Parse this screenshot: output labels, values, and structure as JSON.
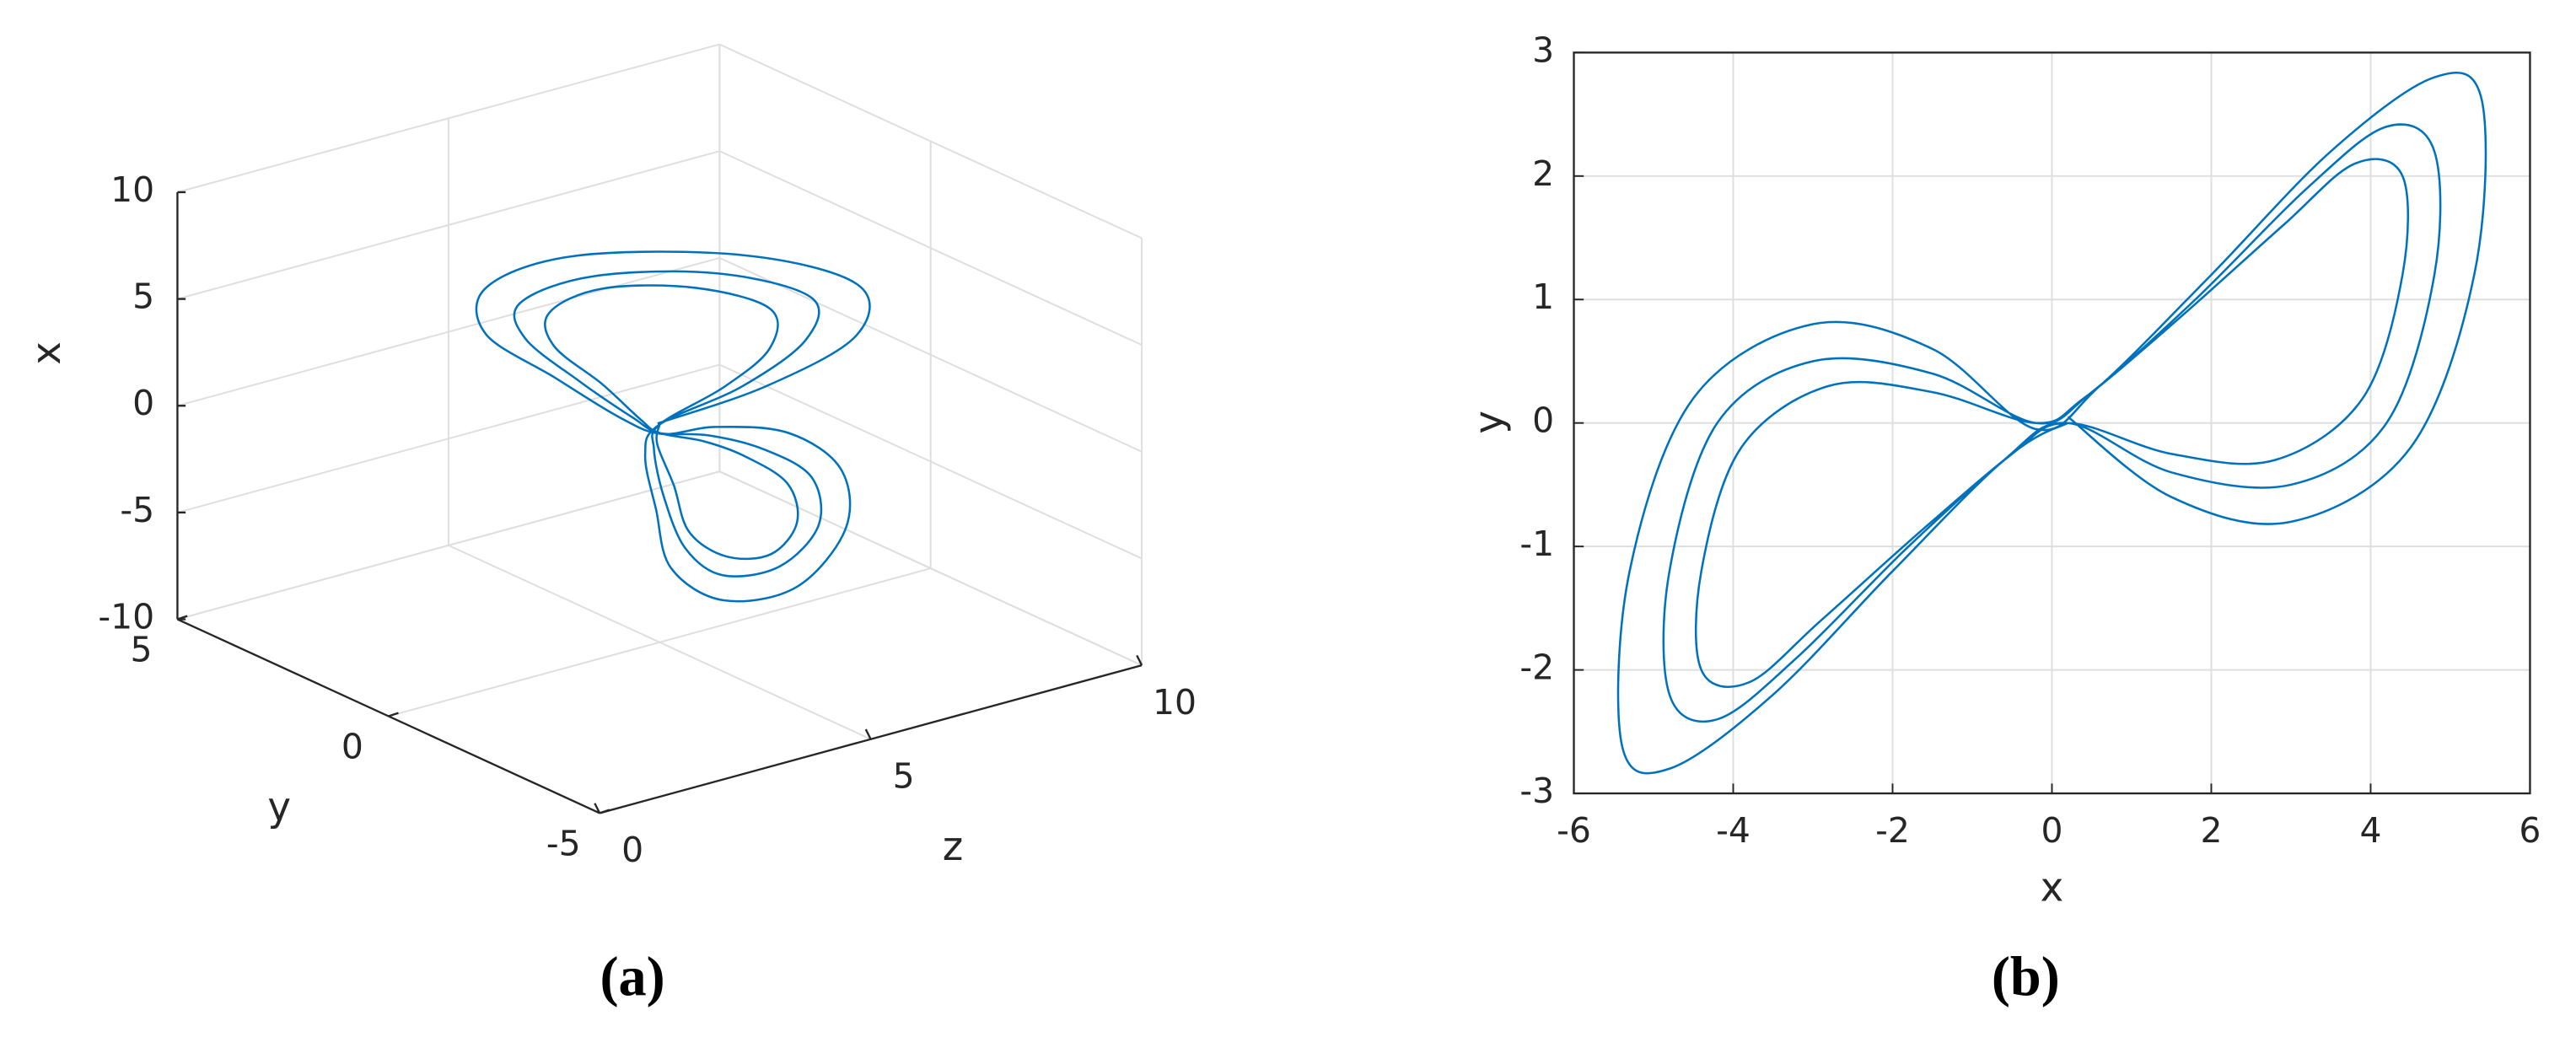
{
  "chart_data": [
    {
      "type": "line3d",
      "caption": "(a)",
      "xlabel": "x",
      "ylabel": "y",
      "zlabel": "z",
      "xlim": [
        -10,
        10
      ],
      "xticks": [
        -10,
        -5,
        0,
        5,
        10
      ],
      "ylim": [
        -5,
        5
      ],
      "yticks": [
        -5,
        0,
        5
      ],
      "zlim": [
        0,
        10
      ],
      "zticks": [
        0,
        5,
        10
      ],
      "grid": true,
      "series": [
        {
          "color": "#0072bd",
          "x": [
            0.2,
            1.5,
            3,
            4.5,
            5.3,
            5.4,
            4.8,
            3.5,
            2,
            0.6,
            -0.2,
            -1.5,
            -3,
            -4.5,
            -5.3,
            -5.4,
            -4.8,
            -3.5,
            -2,
            -0.6,
            0.2,
            1.5,
            3,
            4.2,
            4.8,
            4.8,
            4.2,
            3.2,
            1.8,
            0.5,
            -0.2,
            -1.5,
            -3,
            -4.2,
            -4.8,
            -4.8,
            -4.2,
            -3.2,
            -1.8,
            -0.5,
            0.2,
            1.5,
            2.8,
            3.9,
            4.4,
            4.4,
            3.8,
            2.9,
            1.6,
            0.4,
            -0.2,
            -1.5,
            -2.8,
            -3.9,
            -4.4,
            -4.4,
            -3.8,
            -2.9,
            -1.6,
            -0.4,
            0.2
          ],
          "y": [
            0.05,
            -0.6,
            -0.8,
            -0.2,
            1.2,
            2.6,
            2.8,
            2.2,
            1.2,
            0.3,
            -0.05,
            0.6,
            0.8,
            0.2,
            -1.2,
            -2.6,
            -2.8,
            -2.2,
            -1.2,
            -0.3,
            0,
            -0.4,
            -0.5,
            0,
            1.2,
            2.2,
            2.4,
            1.9,
            1,
            0.25,
            0,
            0.4,
            0.5,
            0,
            -1.2,
            -2.2,
            -2.4,
            -1.9,
            -1,
            -0.25,
            0,
            -0.25,
            -0.3,
            0.2,
            1.2,
            2,
            2.1,
            1.6,
            0.85,
            0.2,
            0,
            0.25,
            0.3,
            -0.2,
            -1.2,
            -2,
            -2.1,
            -1.6,
            -0.85,
            -0.2,
            0
          ],
          "z": [
            5,
            6.5,
            8,
            8.5,
            7.5,
            5.5,
            4,
            3.5,
            4,
            4.5,
            5,
            6.5,
            8,
            8.5,
            7.5,
            5.5,
            4,
            3.5,
            4,
            4.5,
            5,
            6.2,
            7.3,
            7.8,
            7,
            5.5,
            4.3,
            4,
            4.3,
            4.7,
            5,
            6.2,
            7.3,
            7.8,
            7,
            5.5,
            4.3,
            4,
            4.3,
            4.7,
            5,
            6,
            6.8,
            7.2,
            6.6,
            5.5,
            4.6,
            4.3,
            4.6,
            4.8,
            5,
            6,
            6.8,
            7.2,
            6.6,
            5.5,
            4.6,
            4.3,
            4.6,
            4.8,
            5
          ]
        }
      ]
    },
    {
      "type": "line",
      "caption": "(b)",
      "xlabel": "x",
      "ylabel": "y",
      "xlim": [
        -6,
        6
      ],
      "xticks": [
        -6,
        -4,
        -2,
        0,
        2,
        4,
        6
      ],
      "ylim": [
        -3,
        3
      ],
      "yticks": [
        -3,
        -2,
        -1,
        0,
        1,
        2,
        3
      ],
      "grid": true,
      "series": [
        {
          "color": "#0072bd",
          "x": [
            0.2,
            1.5,
            3,
            4.5,
            5.3,
            5.4,
            4.8,
            3.5,
            2,
            0.6,
            -0.2,
            -1.5,
            -3,
            -4.5,
            -5.3,
            -5.4,
            -4.8,
            -3.5,
            -2,
            -0.6,
            0.2,
            1.5,
            3,
            4.2,
            4.8,
            4.8,
            4.2,
            3.2,
            1.8,
            0.5,
            -0.2,
            -1.5,
            -3,
            -4.2,
            -4.8,
            -4.8,
            -4.2,
            -3.2,
            -1.8,
            -0.5,
            0.2,
            1.5,
            2.8,
            3.9,
            4.4,
            4.4,
            3.8,
            2.9,
            1.6,
            0.4,
            -0.2,
            -1.5,
            -2.8,
            -3.9,
            -4.4,
            -4.4,
            -3.8,
            -2.9,
            -1.6,
            -0.4,
            0.2
          ],
          "y": [
            0.05,
            -0.6,
            -0.8,
            -0.2,
            1.2,
            2.6,
            2.8,
            2.2,
            1.2,
            0.3,
            -0.05,
            0.6,
            0.8,
            0.2,
            -1.2,
            -2.6,
            -2.8,
            -2.2,
            -1.2,
            -0.3,
            0,
            -0.4,
            -0.5,
            0,
            1.2,
            2.2,
            2.4,
            1.9,
            1,
            0.25,
            0,
            0.4,
            0.5,
            0,
            -1.2,
            -2.2,
            -2.4,
            -1.9,
            -1,
            -0.25,
            0,
            -0.25,
            -0.3,
            0.2,
            1.2,
            2,
            2.1,
            1.6,
            0.85,
            0.2,
            0,
            0.25,
            0.3,
            -0.2,
            -1.2,
            -2,
            -2.1,
            -1.6,
            -0.85,
            -0.2,
            0
          ]
        }
      ]
    }
  ]
}
